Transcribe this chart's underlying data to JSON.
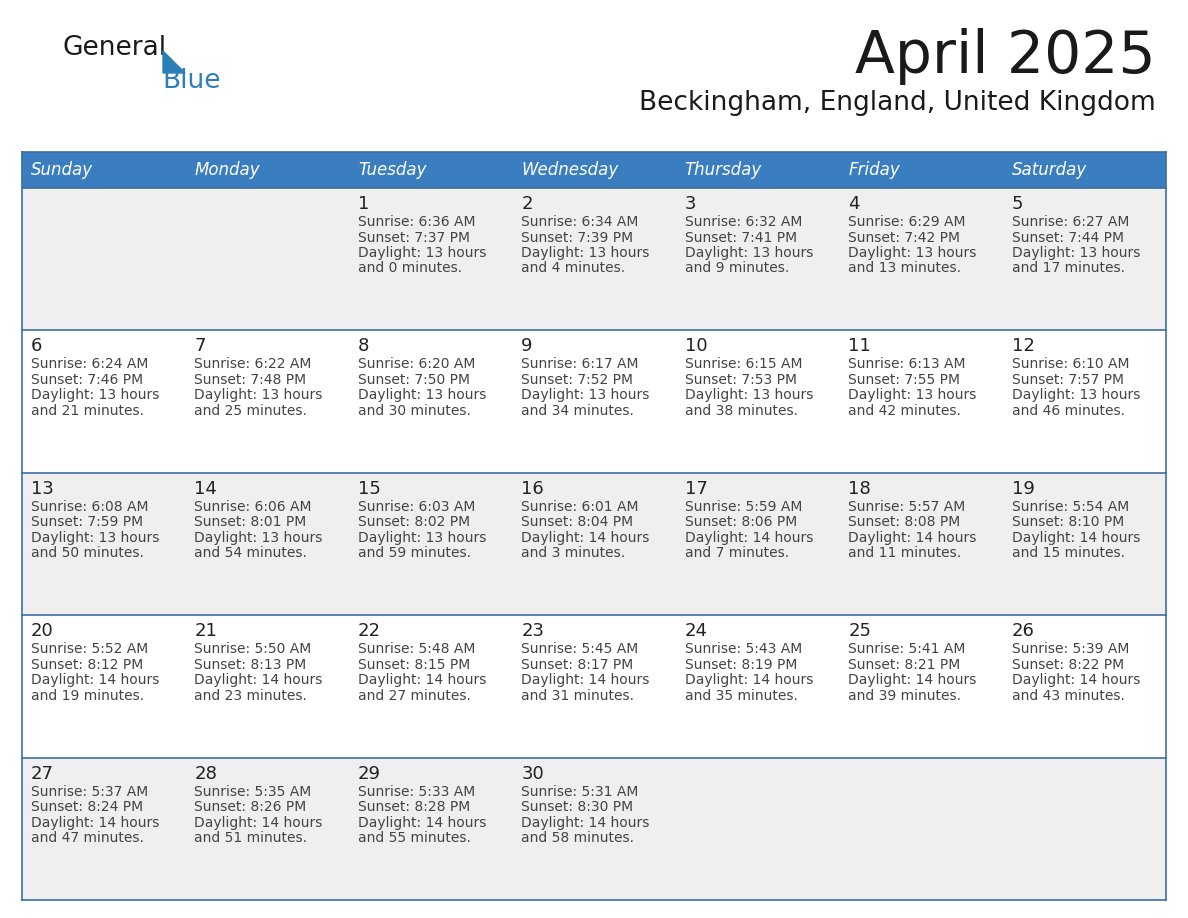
{
  "title": "April 2025",
  "subtitle": "Beckingham, England, United Kingdom",
  "header_bg_color": "#3A7EBF",
  "header_text_color": "#FFFFFF",
  "day_names": [
    "Sunday",
    "Monday",
    "Tuesday",
    "Wednesday",
    "Thursday",
    "Friday",
    "Saturday"
  ],
  "row_color_odd": "#EFEFEF",
  "row_color_even": "#FFFFFF",
  "border_color": "#3A6EA5",
  "row_separator_color": "#3A6EA5",
  "text_color": "#444444",
  "day_num_color": "#222222",
  "title_color": "#1a1a1a",
  "subtitle_color": "#1a1a1a",
  "logo_general_color": "#1a1a1a",
  "logo_blue_color": "#2E7EB8",
  "calendar_data": [
    [
      {
        "day": null,
        "sunrise": null,
        "sunset": null,
        "daylight": null
      },
      {
        "day": null,
        "sunrise": null,
        "sunset": null,
        "daylight": null
      },
      {
        "day": 1,
        "sunrise": "6:36 AM",
        "sunset": "7:37 PM",
        "daylight": "13 hours and 0 minutes."
      },
      {
        "day": 2,
        "sunrise": "6:34 AM",
        "sunset": "7:39 PM",
        "daylight": "13 hours and 4 minutes."
      },
      {
        "day": 3,
        "sunrise": "6:32 AM",
        "sunset": "7:41 PM",
        "daylight": "13 hours and 9 minutes."
      },
      {
        "day": 4,
        "sunrise": "6:29 AM",
        "sunset": "7:42 PM",
        "daylight": "13 hours and 13 minutes."
      },
      {
        "day": 5,
        "sunrise": "6:27 AM",
        "sunset": "7:44 PM",
        "daylight": "13 hours and 17 minutes."
      }
    ],
    [
      {
        "day": 6,
        "sunrise": "6:24 AM",
        "sunset": "7:46 PM",
        "daylight": "13 hours and 21 minutes."
      },
      {
        "day": 7,
        "sunrise": "6:22 AM",
        "sunset": "7:48 PM",
        "daylight": "13 hours and 25 minutes."
      },
      {
        "day": 8,
        "sunrise": "6:20 AM",
        "sunset": "7:50 PM",
        "daylight": "13 hours and 30 minutes."
      },
      {
        "day": 9,
        "sunrise": "6:17 AM",
        "sunset": "7:52 PM",
        "daylight": "13 hours and 34 minutes."
      },
      {
        "day": 10,
        "sunrise": "6:15 AM",
        "sunset": "7:53 PM",
        "daylight": "13 hours and 38 minutes."
      },
      {
        "day": 11,
        "sunrise": "6:13 AM",
        "sunset": "7:55 PM",
        "daylight": "13 hours and 42 minutes."
      },
      {
        "day": 12,
        "sunrise": "6:10 AM",
        "sunset": "7:57 PM",
        "daylight": "13 hours and 46 minutes."
      }
    ],
    [
      {
        "day": 13,
        "sunrise": "6:08 AM",
        "sunset": "7:59 PM",
        "daylight": "13 hours and 50 minutes."
      },
      {
        "day": 14,
        "sunrise": "6:06 AM",
        "sunset": "8:01 PM",
        "daylight": "13 hours and 54 minutes."
      },
      {
        "day": 15,
        "sunrise": "6:03 AM",
        "sunset": "8:02 PM",
        "daylight": "13 hours and 59 minutes."
      },
      {
        "day": 16,
        "sunrise": "6:01 AM",
        "sunset": "8:04 PM",
        "daylight": "14 hours and 3 minutes."
      },
      {
        "day": 17,
        "sunrise": "5:59 AM",
        "sunset": "8:06 PM",
        "daylight": "14 hours and 7 minutes."
      },
      {
        "day": 18,
        "sunrise": "5:57 AM",
        "sunset": "8:08 PM",
        "daylight": "14 hours and 11 minutes."
      },
      {
        "day": 19,
        "sunrise": "5:54 AM",
        "sunset": "8:10 PM",
        "daylight": "14 hours and 15 minutes."
      }
    ],
    [
      {
        "day": 20,
        "sunrise": "5:52 AM",
        "sunset": "8:12 PM",
        "daylight": "14 hours and 19 minutes."
      },
      {
        "day": 21,
        "sunrise": "5:50 AM",
        "sunset": "8:13 PM",
        "daylight": "14 hours and 23 minutes."
      },
      {
        "day": 22,
        "sunrise": "5:48 AM",
        "sunset": "8:15 PM",
        "daylight": "14 hours and 27 minutes."
      },
      {
        "day": 23,
        "sunrise": "5:45 AM",
        "sunset": "8:17 PM",
        "daylight": "14 hours and 31 minutes."
      },
      {
        "day": 24,
        "sunrise": "5:43 AM",
        "sunset": "8:19 PM",
        "daylight": "14 hours and 35 minutes."
      },
      {
        "day": 25,
        "sunrise": "5:41 AM",
        "sunset": "8:21 PM",
        "daylight": "14 hours and 39 minutes."
      },
      {
        "day": 26,
        "sunrise": "5:39 AM",
        "sunset": "8:22 PM",
        "daylight": "14 hours and 43 minutes."
      }
    ],
    [
      {
        "day": 27,
        "sunrise": "5:37 AM",
        "sunset": "8:24 PM",
        "daylight": "14 hours and 47 minutes."
      },
      {
        "day": 28,
        "sunrise": "5:35 AM",
        "sunset": "8:26 PM",
        "daylight": "14 hours and 51 minutes."
      },
      {
        "day": 29,
        "sunrise": "5:33 AM",
        "sunset": "8:28 PM",
        "daylight": "14 hours and 55 minutes."
      },
      {
        "day": 30,
        "sunrise": "5:31 AM",
        "sunset": "8:30 PM",
        "daylight": "14 hours and 58 minutes."
      },
      {
        "day": null,
        "sunrise": null,
        "sunset": null,
        "daylight": null
      },
      {
        "day": null,
        "sunrise": null,
        "sunset": null,
        "daylight": null
      },
      {
        "day": null,
        "sunrise": null,
        "sunset": null,
        "daylight": null
      }
    ]
  ]
}
